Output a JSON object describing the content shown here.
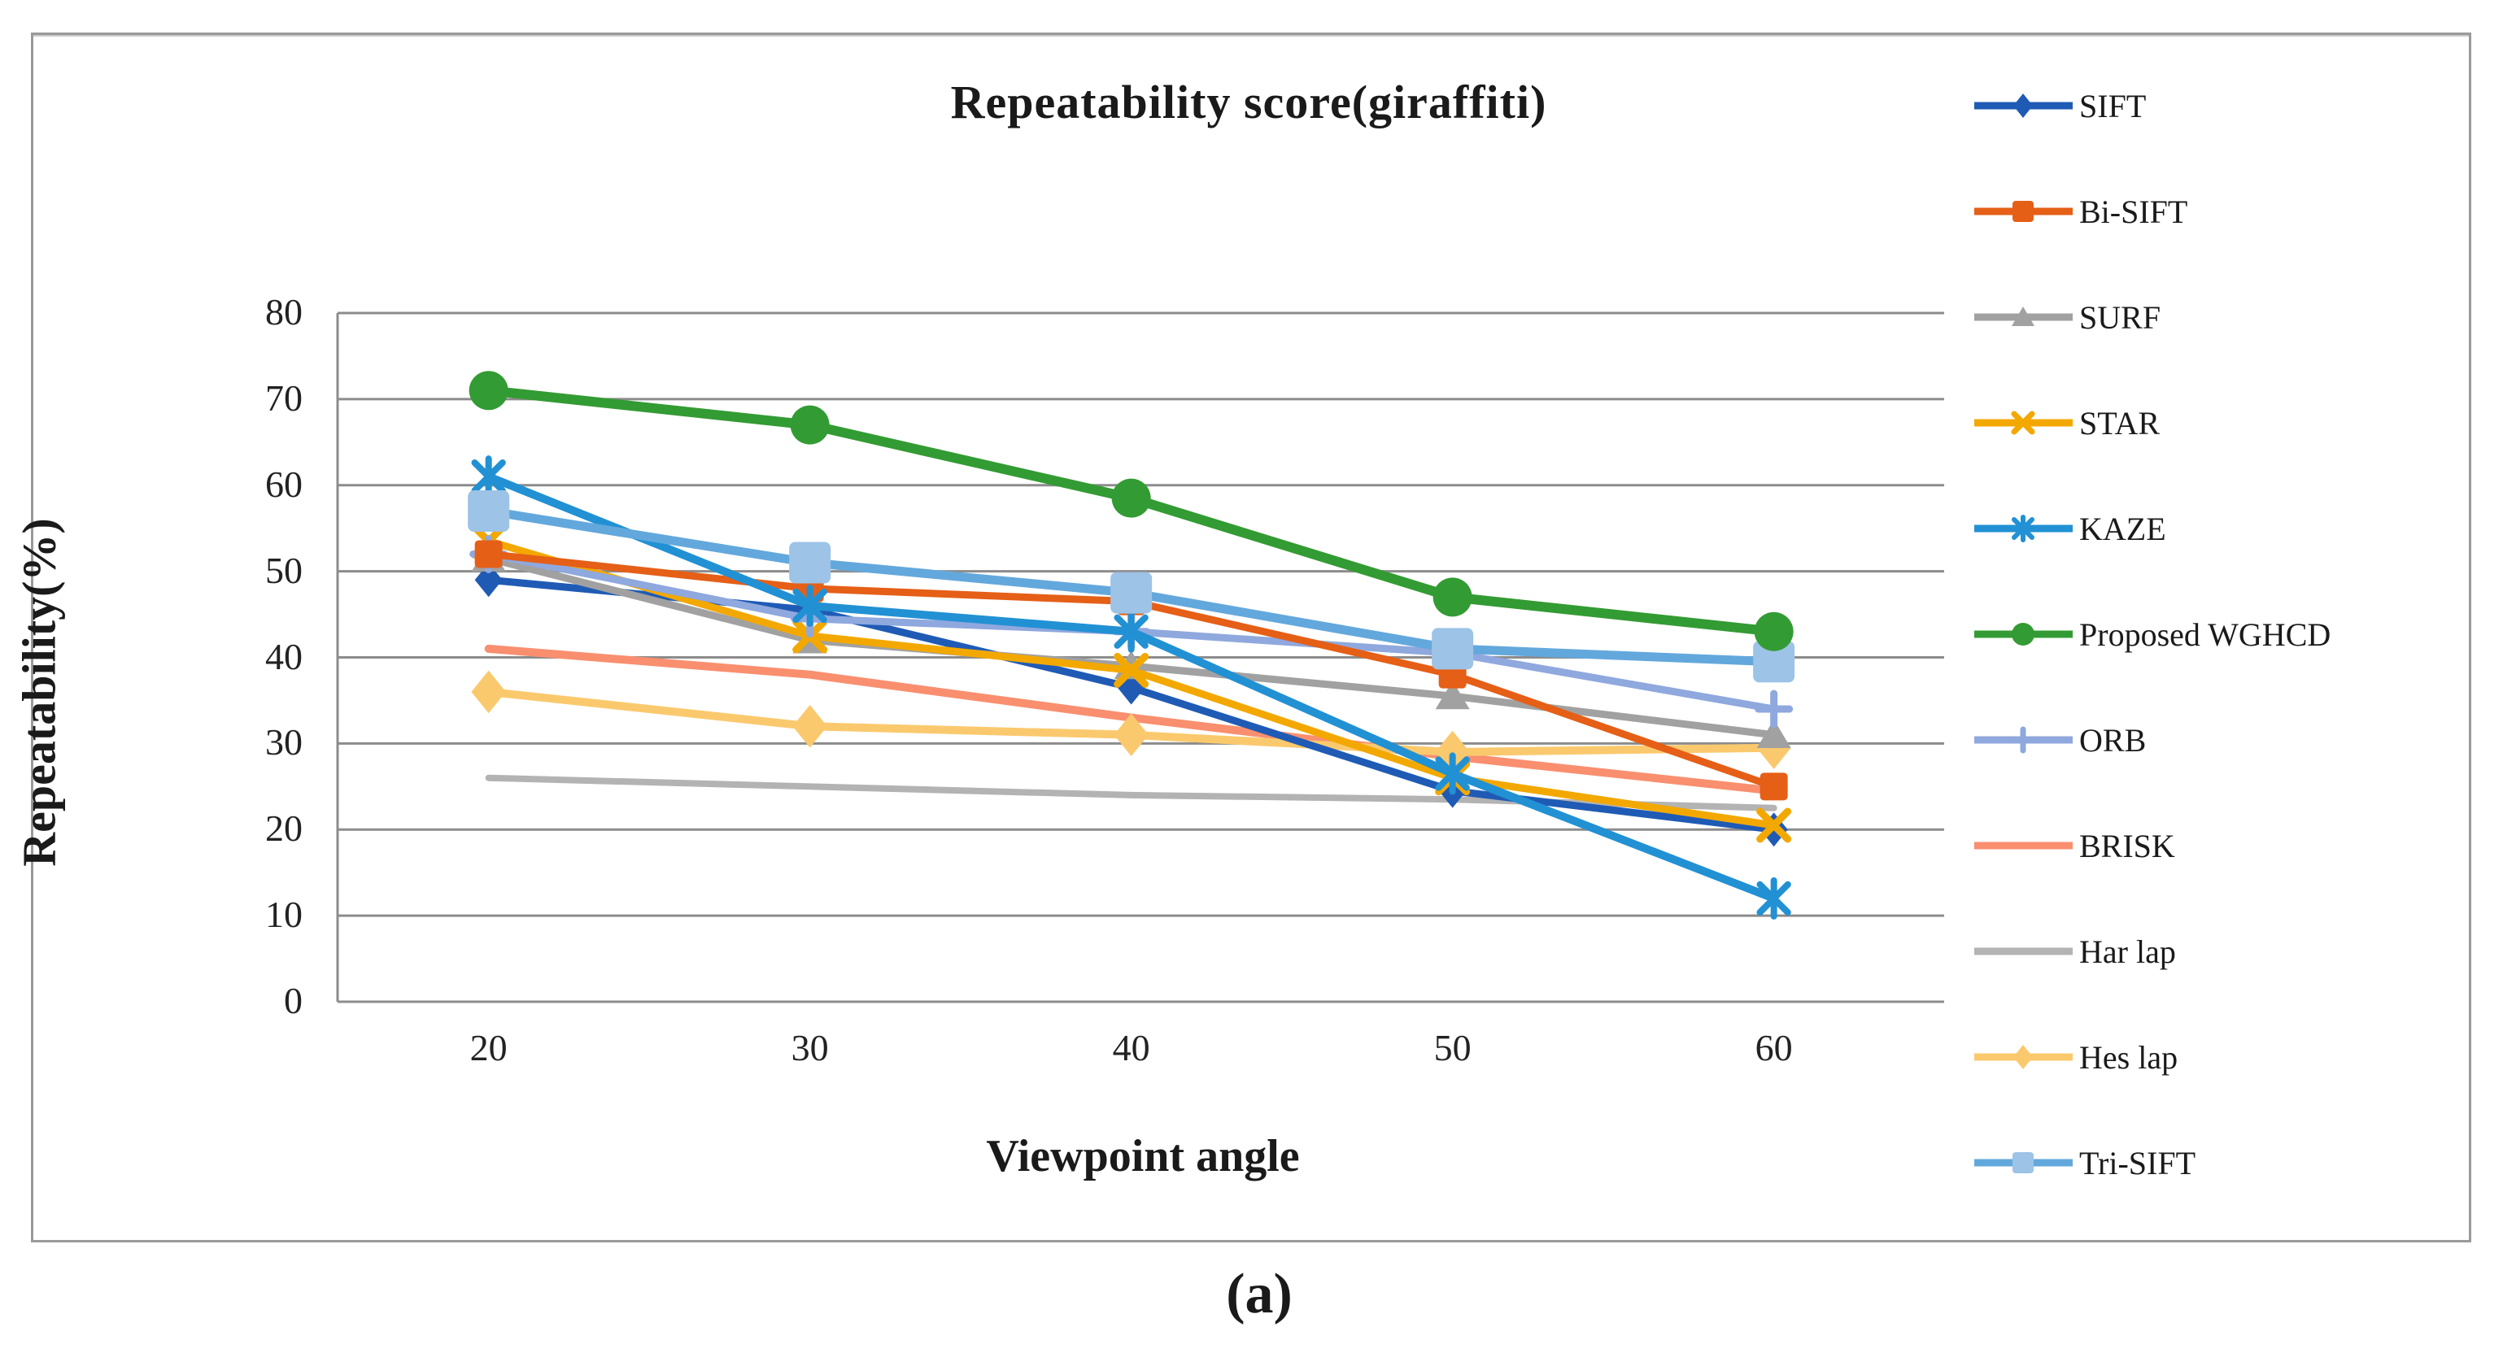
{
  "figure": {
    "caption": "(a)"
  },
  "chart_data": {
    "type": "line",
    "title": "Repeatability score(giraffiti)",
    "xlabel": "Viewpoint angle",
    "ylabel": "Repeatability(%)",
    "x": [
      20,
      30,
      40,
      50,
      60
    ],
    "ylim": [
      0,
      80
    ],
    "ytick_step": 10,
    "yticks": [
      0,
      10,
      20,
      30,
      40,
      50,
      60,
      70,
      80
    ],
    "grid": true,
    "legend_position": "right",
    "axis_color": "#8c8c8c",
    "series": [
      {
        "name": "SIFT",
        "color": "#1f5bb5",
        "marker": "diamond",
        "line_width": 9,
        "values": [
          49,
          45.5,
          36.5,
          24.5,
          20
        ]
      },
      {
        "name": "Bi-SIFT",
        "color": "#e55f17",
        "marker": "square",
        "line_width": 9,
        "values": [
          52,
          48,
          46.5,
          38,
          25
        ]
      },
      {
        "name": "SURF",
        "color": "#a1a1a1",
        "marker": "triangle",
        "line_width": 9,
        "values": [
          51.5,
          42,
          39,
          35.5,
          31
        ]
      },
      {
        "name": "STAR",
        "color": "#f3a800",
        "marker": "x",
        "line_width": 9,
        "values": [
          53.5,
          42.5,
          38.5,
          26,
          20.5
        ]
      },
      {
        "name": "KAZE",
        "color": "#2191d4",
        "marker": "asterisk",
        "line_width": 10,
        "values": [
          61,
          46,
          43,
          26.5,
          12
        ]
      },
      {
        "name": "Proposed WGHCD",
        "color": "#339b33",
        "marker": "circle",
        "line_width": 12,
        "values": [
          71,
          67,
          58.5,
          47,
          43
        ]
      },
      {
        "name": "ORB",
        "color": "#8fa8de",
        "marker": "plus",
        "line_width": 9,
        "values": [
          52,
          44.5,
          43,
          40.5,
          34
        ]
      },
      {
        "name": "BRISK",
        "color": "#f98f6f",
        "marker": "none",
        "line_width": 10,
        "values": [
          41,
          38,
          33,
          28.5,
          24.5
        ]
      },
      {
        "name": "Har lap",
        "color": "#b3b3b3",
        "marker": "none",
        "line_width": 8,
        "values": [
          26,
          25,
          24,
          23.5,
          22.5
        ]
      },
      {
        "name": "Hes lap",
        "color": "#fbc96d",
        "marker": "diamond",
        "line_width": 10,
        "values": [
          36,
          32,
          31,
          29,
          29.5
        ],
        "marker_size": 1.25
      },
      {
        "name": "Tri-SIFT",
        "color": "#63a8dc",
        "marker": "square",
        "line_width": 11,
        "values": [
          57,
          51,
          47.5,
          41,
          39.5
        ],
        "marker_color": "#9dc3e6",
        "marker_size": 1.5
      }
    ]
  }
}
